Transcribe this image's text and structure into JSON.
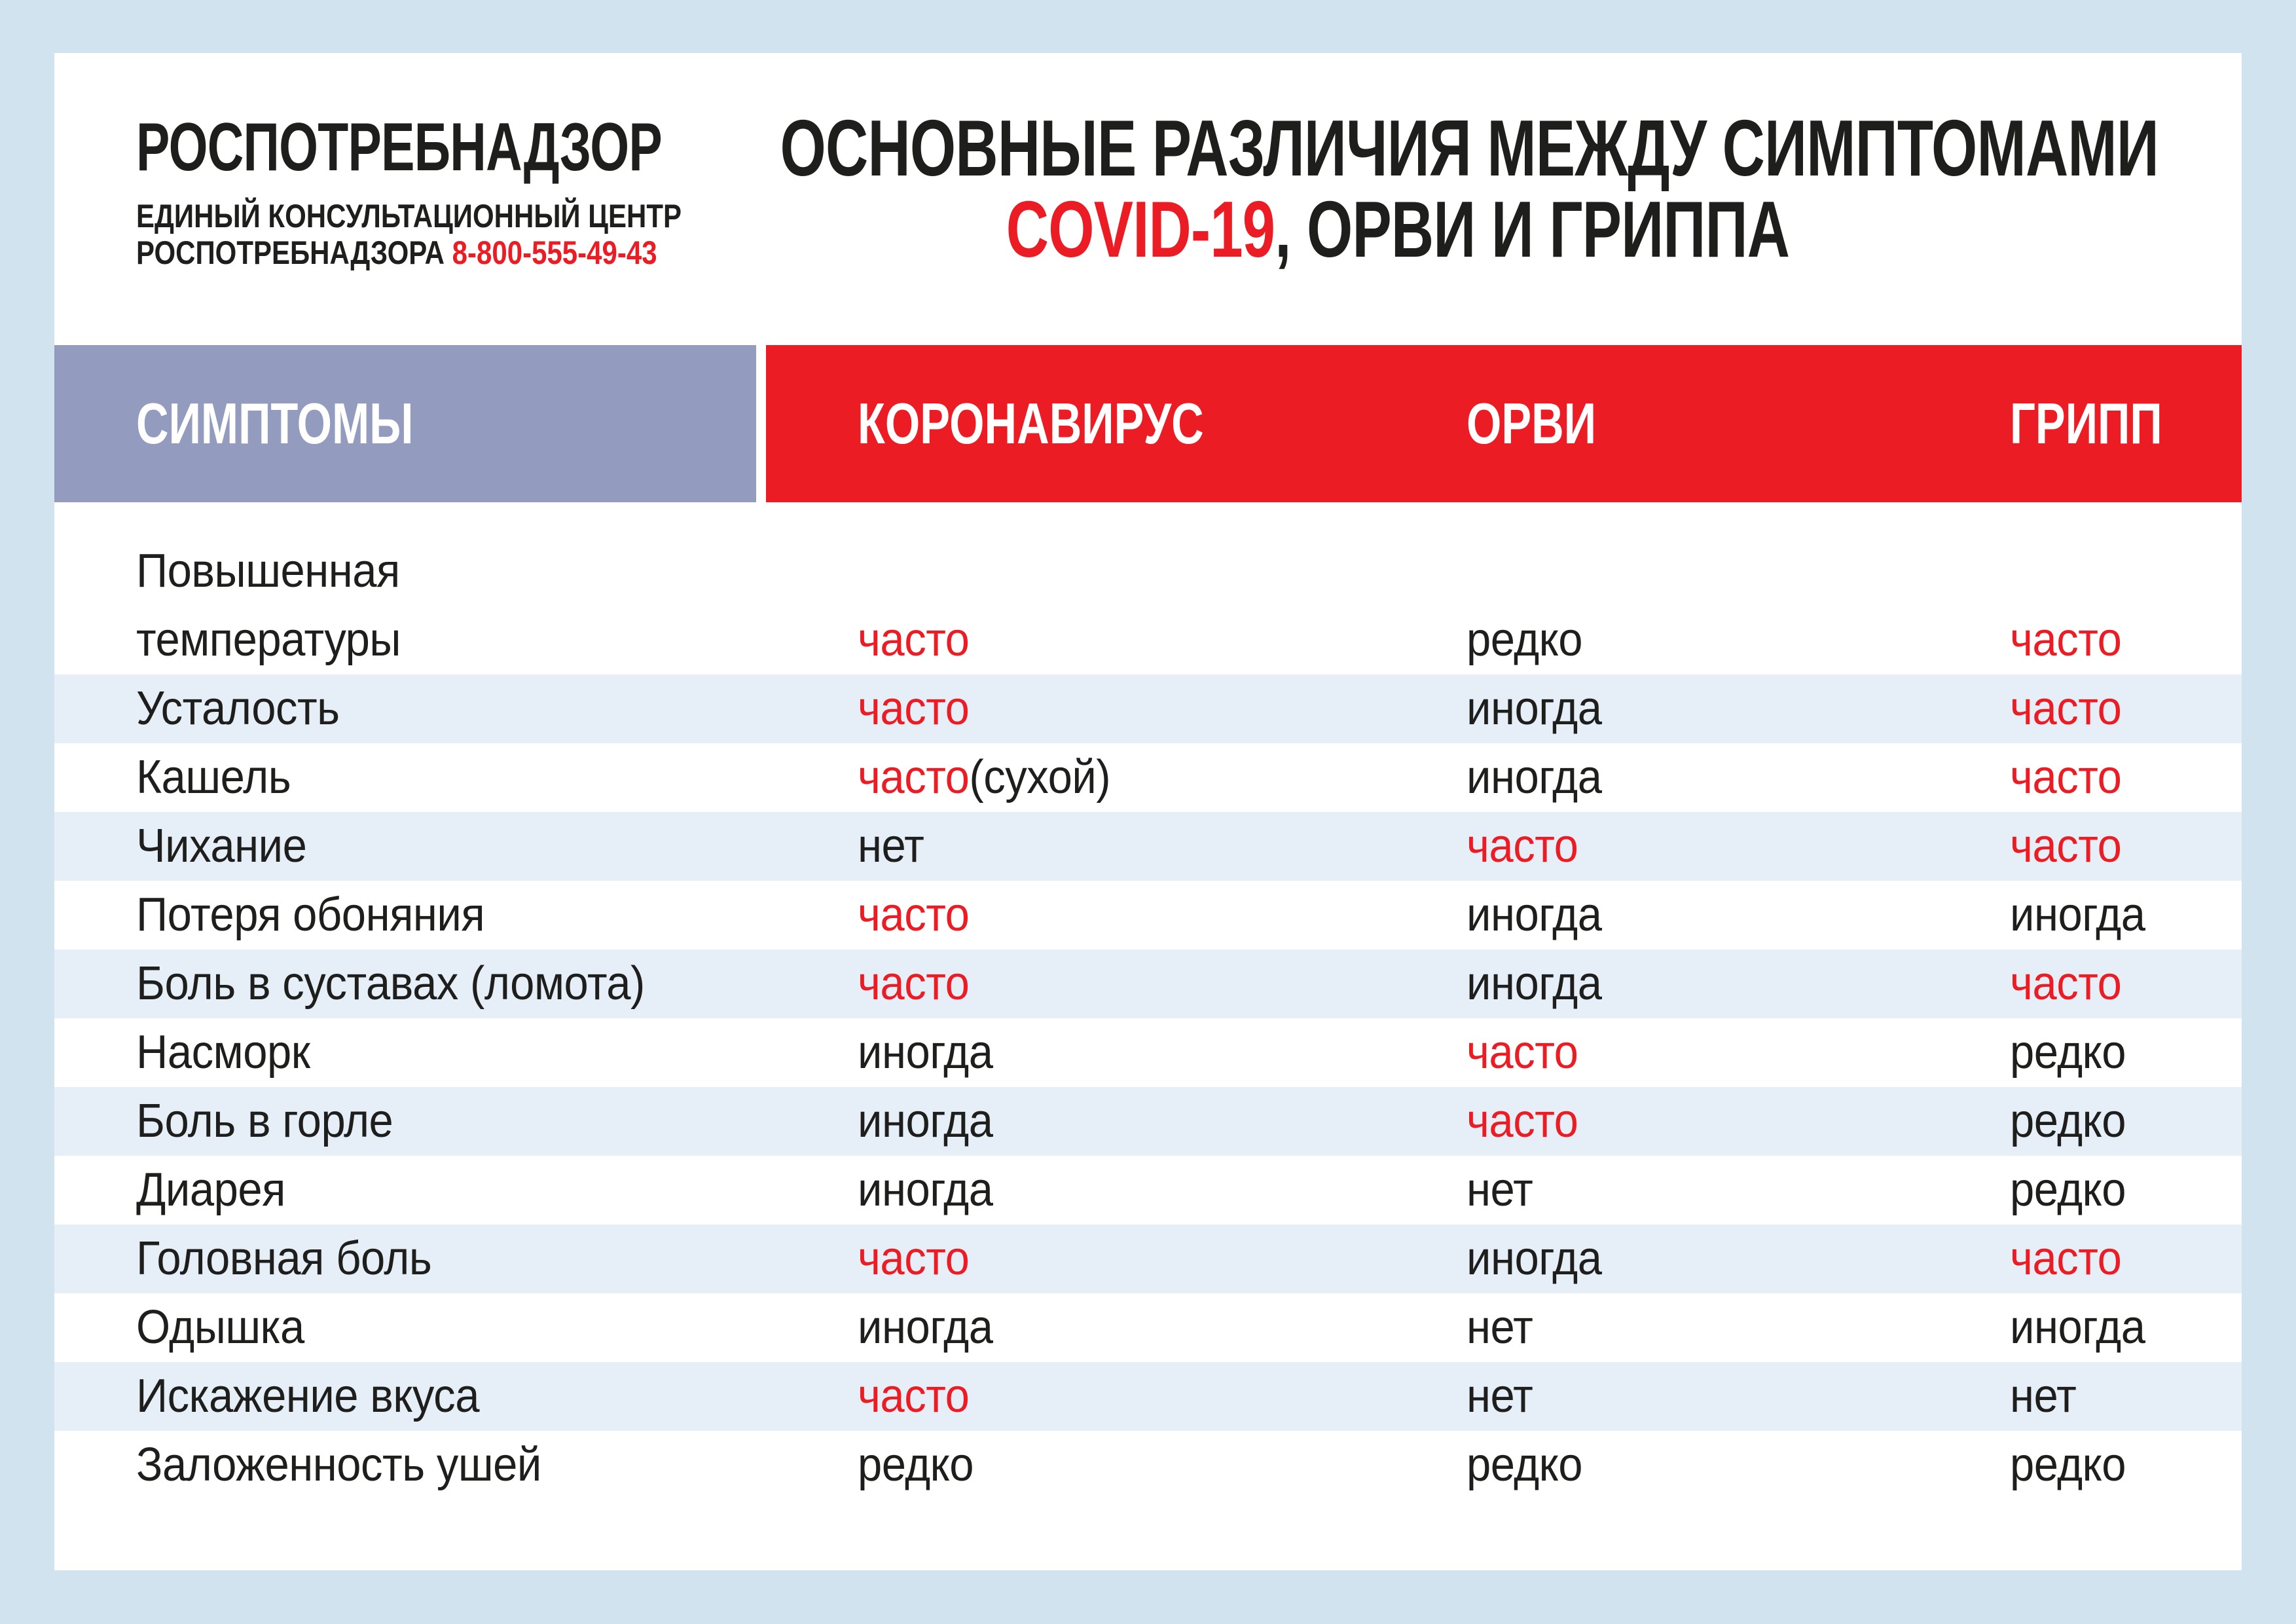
{
  "page": {
    "background": "#d0e3ef",
    "card_background": "#ffffff"
  },
  "colors": {
    "accent_red": "#ec1c24",
    "text_black": "#1e1e1c",
    "header_symptoms_bg": "#939cbe",
    "header_virus_bg": "#ec1c24",
    "row_stripe": "#e6eff7"
  },
  "logo": {
    "name": "РОСПОТРЕБНАДЗОР",
    "subtitle_line1": "ЕДИНЫЙ КОНСУЛЬТАЦИОННЫЙ ЦЕНТР",
    "subtitle_line2": "РОСПОТРЕБНАДЗОРА",
    "phone": "8-800-555-49-43"
  },
  "title": {
    "line1": "ОСНОВНЫЕ РАЗЛИЧИЯ МЕЖДУ СИМПТОМАМИ",
    "line2_highlight": "COVID-19",
    "line2_rest": ", ОРВИ И ГРИППА"
  },
  "table": {
    "symptom_header": "СИМПТОМЫ",
    "columns": [
      "КОРОНАВИРУС",
      "ОРВИ",
      "ГРИПП"
    ],
    "rows": [
      {
        "symptom_lines": [
          "Повышенная",
          "температуры"
        ],
        "values": [
          [
            {
              "t": "часто",
              "c": "red"
            }
          ],
          [
            {
              "t": "редко",
              "c": "black"
            }
          ],
          [
            {
              "t": "часто",
              "c": "red"
            }
          ]
        ]
      },
      {
        "symptom_lines": [
          "Усталость"
        ],
        "values": [
          [
            {
              "t": "часто",
              "c": "red"
            }
          ],
          [
            {
              "t": "иногда",
              "c": "black"
            }
          ],
          [
            {
              "t": "часто",
              "c": "red"
            }
          ]
        ]
      },
      {
        "symptom_lines": [
          "Кашель"
        ],
        "values": [
          [
            {
              "t": "часто",
              "c": "red"
            },
            {
              "t": "(сухой)",
              "c": "black"
            }
          ],
          [
            {
              "t": "иногда",
              "c": "black"
            }
          ],
          [
            {
              "t": "часто",
              "c": "red"
            }
          ]
        ]
      },
      {
        "symptom_lines": [
          "Чихание"
        ],
        "values": [
          [
            {
              "t": "нет",
              "c": "black"
            }
          ],
          [
            {
              "t": "часто",
              "c": "red"
            }
          ],
          [
            {
              "t": "часто",
              "c": "red"
            }
          ]
        ]
      },
      {
        "symptom_lines": [
          "Потеря обоняния"
        ],
        "values": [
          [
            {
              "t": "часто",
              "c": "red"
            }
          ],
          [
            {
              "t": "иногда",
              "c": "black"
            }
          ],
          [
            {
              "t": "иногда",
              "c": "black"
            }
          ]
        ]
      },
      {
        "symptom_lines": [
          "Боль в суставах (ломота)"
        ],
        "values": [
          [
            {
              "t": "часто",
              "c": "red"
            }
          ],
          [
            {
              "t": "иногда",
              "c": "black"
            }
          ],
          [
            {
              "t": "часто",
              "c": "red"
            }
          ]
        ]
      },
      {
        "symptom_lines": [
          "Насморк"
        ],
        "values": [
          [
            {
              "t": "иногда",
              "c": "black"
            }
          ],
          [
            {
              "t": "часто",
              "c": "red"
            }
          ],
          [
            {
              "t": "редко",
              "c": "black"
            }
          ]
        ]
      },
      {
        "symptom_lines": [
          "Боль в горле"
        ],
        "values": [
          [
            {
              "t": "иногда",
              "c": "black"
            }
          ],
          [
            {
              "t": "часто",
              "c": "red"
            }
          ],
          [
            {
              "t": "редко",
              "c": "black"
            }
          ]
        ]
      },
      {
        "symptom_lines": [
          "Диарея"
        ],
        "values": [
          [
            {
              "t": "иногда",
              "c": "black"
            }
          ],
          [
            {
              "t": "нет",
              "c": "black"
            }
          ],
          [
            {
              "t": "редко",
              "c": "black"
            }
          ]
        ]
      },
      {
        "symptom_lines": [
          "Головная боль"
        ],
        "values": [
          [
            {
              "t": "часто",
              "c": "red"
            }
          ],
          [
            {
              "t": "иногда",
              "c": "black"
            }
          ],
          [
            {
              "t": "часто",
              "c": "red"
            }
          ]
        ]
      },
      {
        "symptom_lines": [
          "Одышка"
        ],
        "values": [
          [
            {
              "t": "иногда",
              "c": "black"
            }
          ],
          [
            {
              "t": "нет",
              "c": "black"
            }
          ],
          [
            {
              "t": "иногда",
              "c": "black"
            }
          ]
        ]
      },
      {
        "symptom_lines": [
          "Искажение вкуса"
        ],
        "values": [
          [
            {
              "t": "часто",
              "c": "red"
            }
          ],
          [
            {
              "t": "нет",
              "c": "black"
            }
          ],
          [
            {
              "t": "нет",
              "c": "black"
            }
          ]
        ]
      },
      {
        "symptom_lines": [
          "Заложенность ушей"
        ],
        "values": [
          [
            {
              "t": "редко",
              "c": "black"
            }
          ],
          [
            {
              "t": "редко",
              "c": "black"
            }
          ],
          [
            {
              "t": "редко",
              "c": "black"
            }
          ]
        ]
      }
    ]
  }
}
